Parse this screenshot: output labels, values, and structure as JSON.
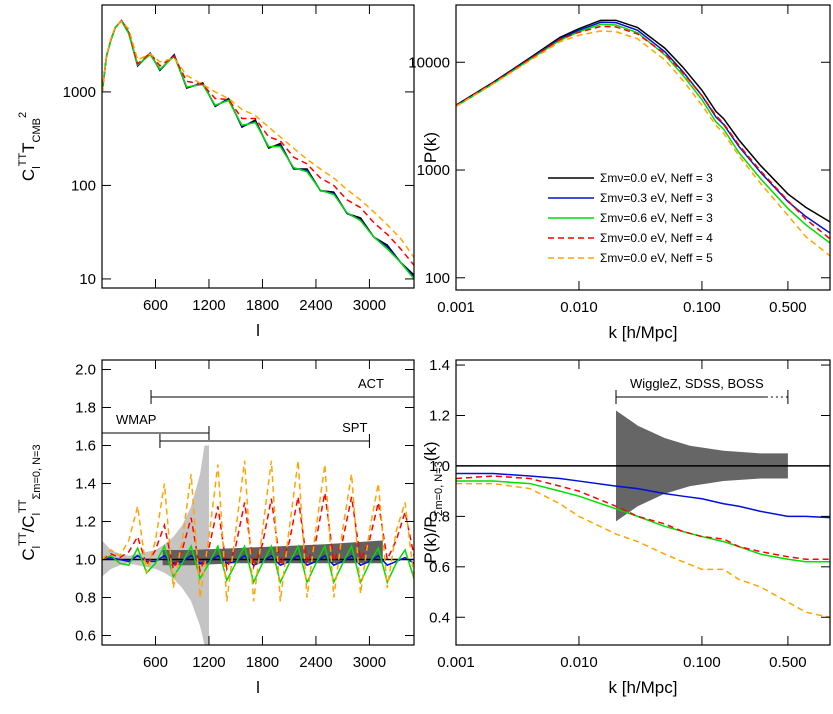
{
  "chart_data": [
    {
      "type": "line",
      "xlim": [
        0,
        3500
      ],
      "ylim": [
        8,
        8500
      ],
      "ylog": true,
      "xticks": [
        600,
        1200,
        1800,
        2400,
        3000
      ],
      "yticks": [
        10,
        100,
        1000
      ],
      "x_label": "l",
      "y_label": [
        "C",
        "l",
        "TT",
        "T",
        "CMB",
        "2"
      ],
      "x": [
        2,
        50,
        100,
        150,
        220,
        300,
        400,
        540,
        650,
        810,
        950,
        1130,
        1270,
        1420,
        1570,
        1720,
        1870,
        2000,
        2150,
        2300,
        2450,
        2600,
        2750,
        2900,
        3050,
        3200,
        3350,
        3500
      ],
      "series": [
        {
          "color": "#000000",
          "values": [
            1000,
            2400,
            3600,
            4900,
            5800,
            4300,
            1900,
            2600,
            1700,
            2500,
            1100,
            1250,
            700,
            850,
            420,
            500,
            250,
            280,
            150,
            150,
            88,
            85,
            50,
            45,
            28,
            23,
            15,
            11
          ]
        },
        {
          "color": "#0010d8",
          "values": [
            1000,
            2400,
            3600,
            4900,
            5750,
            4250,
            1920,
            2550,
            1720,
            2450,
            1120,
            1220,
            710,
            830,
            430,
            480,
            255,
            270,
            152,
            145,
            88,
            82,
            50,
            43,
            28,
            22,
            15,
            10.5
          ]
        },
        {
          "color": "#00dd00",
          "values": [
            1000,
            2400,
            3600,
            4900,
            5700,
            4200,
            1950,
            2500,
            1750,
            2400,
            1130,
            1200,
            720,
            810,
            440,
            470,
            260,
            260,
            155,
            140,
            89,
            80,
            51,
            42,
            28,
            21,
            15,
            10
          ]
        },
        {
          "color": "#ff0000",
          "dash": true,
          "values": [
            1000,
            2400,
            3650,
            4950,
            5800,
            4500,
            2000,
            2600,
            1900,
            2400,
            1300,
            1200,
            850,
            830,
            520,
            520,
            330,
            300,
            200,
            170,
            120,
            100,
            70,
            58,
            40,
            30,
            21,
            14
          ]
        },
        {
          "color": "#ffa500",
          "dash": true,
          "values": [
            1000,
            2400,
            3700,
            5000,
            5700,
            4700,
            2200,
            2550,
            2100,
            2300,
            1500,
            1200,
            1000,
            850,
            650,
            560,
            420,
            330,
            250,
            190,
            150,
            120,
            90,
            70,
            52,
            38,
            27,
            17
          ]
        }
      ]
    },
    {
      "type": "line",
      "xlim": [
        0.001,
        1.1
      ],
      "ylim": [
        77,
        34000
      ],
      "xlog": true,
      "ylog": true,
      "xticks": [
        0.001,
        {
          "value": 0.01,
          "label": "0.010"
        },
        {
          "value": 0.1,
          "label": "0.100"
        },
        {
          "value": 0.5,
          "label": "0.500"
        }
      ],
      "yticks": [
        100,
        1000,
        10000
      ],
      "x_label": "k [h/Mpc]",
      "y_label": [
        "P(k)"
      ],
      "legend": "lower right",
      "x": [
        0.001,
        0.002,
        0.004,
        0.007,
        0.01,
        0.015,
        0.02,
        0.03,
        0.05,
        0.07,
        0.1,
        0.13,
        0.15,
        0.2,
        0.3,
        0.5,
        0.7,
        1.1
      ],
      "series": [
        {
          "name": "Σmν=0.0 eV, Neff = 3",
          "color": "#000000",
          "values": [
            4000,
            6500,
            11000,
            17000,
            20500,
            24500,
            24500,
            21000,
            13500,
            9000,
            5500,
            3500,
            3000,
            1900,
            1100,
            600,
            450,
            330
          ]
        },
        {
          "name": "Σmν=0.3 eV, Neff = 3",
          "color": "#0010d8",
          "values": [
            3950,
            6400,
            10800,
            16500,
            19800,
            23500,
            23300,
            19800,
            12500,
            8200,
            4900,
            3100,
            2650,
            1650,
            950,
            510,
            370,
            260
          ]
        },
        {
          "name": "Σmν=0.6 eV, Neff = 3",
          "color": "#00dd00",
          "values": [
            3900,
            6300,
            10600,
            16000,
            19200,
            22500,
            22200,
            18800,
            11700,
            7600,
            4500,
            2800,
            2400,
            1450,
            830,
            440,
            310,
            210
          ]
        },
        {
          "name": "Σmν=0.0 eV, Neff = 4",
          "color": "#ff0000",
          "dash": true,
          "values": [
            3950,
            6400,
            10700,
            16300,
            19000,
            21500,
            21300,
            18300,
            12000,
            8000,
            4900,
            3200,
            2700,
            1700,
            980,
            520,
            350,
            230
          ]
        },
        {
          "name": "Σmν=0.0 eV, Neff = 5",
          "color": "#ffa500",
          "dash": true,
          "values": [
            3900,
            6300,
            10400,
            15500,
            17800,
            19500,
            19200,
            16500,
            10500,
            6800,
            4000,
            2600,
            2200,
            1350,
            750,
            380,
            240,
            160
          ]
        }
      ]
    },
    {
      "type": "line",
      "xlim": [
        0,
        3500
      ],
      "ylim": [
        0.55,
        2.05
      ],
      "xticks": [
        600,
        1200,
        1800,
        2400,
        3000
      ],
      "yticks": [
        0.6,
        0.8,
        {
          "value": 1,
          "label": "1.0"
        },
        1.2,
        1.4,
        1.6,
        1.8,
        {
          "value": 2,
          "label": "2.0"
        }
      ],
      "x_label": "l",
      "y_label": [
        "C",
        "l",
        "TT",
        "/C",
        "l",
        "TT",
        "Σm=0, N=3"
      ],
      "bands": [
        {
          "color": "#c4c4c4",
          "x": [
            0,
            100,
            200,
            300,
            400,
            500,
            600,
            700,
            800,
            900,
            1000,
            1100,
            1150,
            1200
          ],
          "lower": [
            0.91,
            0.95,
            0.97,
            0.98,
            0.97,
            0.96,
            0.95,
            0.93,
            0.9,
            0.85,
            0.78,
            0.65,
            0.55,
            0.55
          ],
          "upper": [
            1.1,
            1.05,
            1.03,
            1.02,
            1.03,
            1.04,
            1.05,
            1.08,
            1.12,
            1.18,
            1.28,
            1.45,
            1.6,
            1.6
          ]
        },
        {
          "color": "#606060",
          "x": [
            680,
            1000,
            1500,
            2000,
            2500,
            3150
          ],
          "lower": [
            0.97,
            0.97,
            0.98,
            0.98,
            0.98,
            0.98
          ],
          "upper": [
            1.05,
            1.05,
            1.06,
            1.07,
            1.08,
            1.1
          ]
        }
      ],
      "ranges": [
        {
          "label": "ACT",
          "from": 550,
          "to": 3500
        },
        {
          "label": "WMAP",
          "from": 0,
          "to": 1200
        },
        {
          "label": "SPT",
          "from": 650,
          "to": 3000
        }
      ],
      "x": [
        0,
        100,
        200,
        300,
        400,
        500,
        600,
        700,
        800,
        900,
        1000,
        1100,
        1200,
        1300,
        1400,
        1500,
        1600,
        1700,
        1800,
        1900,
        2000,
        2100,
        2200,
        2300,
        2400,
        2500,
        2600,
        2700,
        2800,
        2900,
        3000,
        3100,
        3200,
        3300,
        3400,
        3500
      ],
      "series": [
        {
          "color": "#000000",
          "values": [
            1,
            1,
            1,
            1,
            1,
            1,
            1,
            1,
            1,
            1,
            1,
            1,
            1,
            1,
            1,
            1,
            1,
            1,
            1,
            1,
            1,
            1,
            1,
            1,
            1,
            1,
            1,
            1,
            1,
            1,
            1,
            1,
            1,
            1,
            1,
            1
          ]
        },
        {
          "color": "#0010d8",
          "values": [
            1.0,
            1.01,
            1.0,
            0.99,
            1.02,
            0.99,
            0.99,
            1.02,
            0.98,
            0.99,
            1.02,
            0.98,
            0.99,
            1.02,
            0.98,
            0.99,
            1.02,
            0.97,
            0.99,
            1.02,
            0.97,
            0.99,
            1.02,
            0.97,
            0.99,
            1.02,
            0.97,
            0.99,
            1.02,
            0.97,
            0.99,
            1.02,
            0.97,
            0.99,
            1.01,
            0.98
          ]
        },
        {
          "color": "#00dd00",
          "values": [
            1.0,
            1.02,
            0.98,
            0.97,
            1.06,
            0.93,
            0.98,
            1.07,
            0.91,
            0.98,
            1.07,
            0.9,
            0.98,
            1.07,
            0.89,
            0.98,
            1.07,
            0.88,
            0.98,
            1.07,
            0.88,
            0.98,
            1.07,
            0.88,
            0.98,
            1.07,
            0.88,
            0.98,
            1.07,
            0.88,
            0.98,
            1.06,
            0.88,
            0.98,
            1.05,
            0.9
          ]
        },
        {
          "color": "#ff0000",
          "dash": true,
          "values": [
            1.0,
            1.03,
            1.01,
            1.04,
            1.12,
            0.97,
            1.05,
            1.18,
            0.95,
            1.05,
            1.22,
            0.94,
            1.06,
            1.28,
            0.95,
            1.07,
            1.3,
            0.96,
            1.08,
            1.32,
            0.97,
            1.09,
            1.33,
            0.98,
            1.1,
            1.35,
            0.99,
            1.1,
            1.33,
            1.0,
            1.1,
            1.3,
            1.0,
            1.1,
            1.25,
            1.02
          ]
        },
        {
          "color": "#ffa500",
          "dash": true,
          "values": [
            1.0,
            1.05,
            1.02,
            1.1,
            1.28,
            0.93,
            1.1,
            1.4,
            0.85,
            1.1,
            1.45,
            0.8,
            1.12,
            1.5,
            0.78,
            1.15,
            1.52,
            0.78,
            1.15,
            1.52,
            0.78,
            1.16,
            1.52,
            0.8,
            1.16,
            1.5,
            0.8,
            1.16,
            1.45,
            0.82,
            1.15,
            1.4,
            0.85,
            1.15,
            1.3,
            0.9
          ]
        }
      ]
    },
    {
      "type": "line",
      "xlim": [
        0.001,
        1.1
      ],
      "ylim": [
        0.29,
        1.42
      ],
      "xlog": true,
      "xticks": [
        0.001,
        {
          "value": 0.01,
          "label": "0.010"
        },
        {
          "value": 0.1,
          "label": "0.100"
        },
        {
          "value": 0.5,
          "label": "0.500"
        }
      ],
      "yticks": [
        0.4,
        0.6,
        0.8,
        {
          "value": 1,
          "label": "1.0"
        },
        1.2,
        1.4
      ],
      "x_label": "k [h/Mpc]",
      "y_label": [
        "P(k)/P",
        "Σm=0, N=3",
        "(k)"
      ],
      "bands": [
        {
          "color": "#666666",
          "x": [
            0.02,
            0.03,
            0.05,
            0.08,
            0.15,
            0.3,
            0.5
          ],
          "lower": [
            0.78,
            0.84,
            0.89,
            0.92,
            0.94,
            0.95,
            0.95
          ],
          "upper": [
            1.22,
            1.16,
            1.11,
            1.08,
            1.06,
            1.05,
            1.05
          ]
        }
      ],
      "ranges": [
        {
          "label": "WiggleZ, SDSS, BOSS",
          "from": 0.02,
          "to": 0.5
        }
      ],
      "x": [
        0.001,
        0.002,
        0.004,
        0.007,
        0.01,
        0.02,
        0.03,
        0.05,
        0.07,
        0.1,
        0.15,
        0.2,
        0.3,
        0.5,
        0.7,
        1.1
      ],
      "series": [
        {
          "color": "#000000",
          "values": [
            1,
            1,
            1,
            1,
            1,
            1,
            1,
            1,
            1,
            1,
            1,
            1,
            1,
            1,
            1,
            1
          ]
        },
        {
          "color": "#0010d8",
          "values": [
            0.97,
            0.97,
            0.96,
            0.95,
            0.94,
            0.92,
            0.91,
            0.89,
            0.88,
            0.87,
            0.85,
            0.84,
            0.82,
            0.8,
            0.8,
            0.795
          ]
        },
        {
          "color": "#00dd00",
          "values": [
            0.94,
            0.94,
            0.93,
            0.9,
            0.88,
            0.83,
            0.8,
            0.76,
            0.74,
            0.72,
            0.7,
            0.68,
            0.65,
            0.63,
            0.62,
            0.62
          ]
        },
        {
          "color": "#ff0000",
          "dash": true,
          "values": [
            0.95,
            0.96,
            0.95,
            0.92,
            0.9,
            0.84,
            0.8,
            0.77,
            0.74,
            0.72,
            0.71,
            0.68,
            0.66,
            0.64,
            0.63,
            0.63
          ]
        },
        {
          "color": "#ffa500",
          "dash": true,
          "values": [
            0.93,
            0.93,
            0.91,
            0.85,
            0.8,
            0.73,
            0.7,
            0.65,
            0.62,
            0.59,
            0.59,
            0.55,
            0.52,
            0.46,
            0.42,
            0.4
          ]
        }
      ]
    }
  ]
}
